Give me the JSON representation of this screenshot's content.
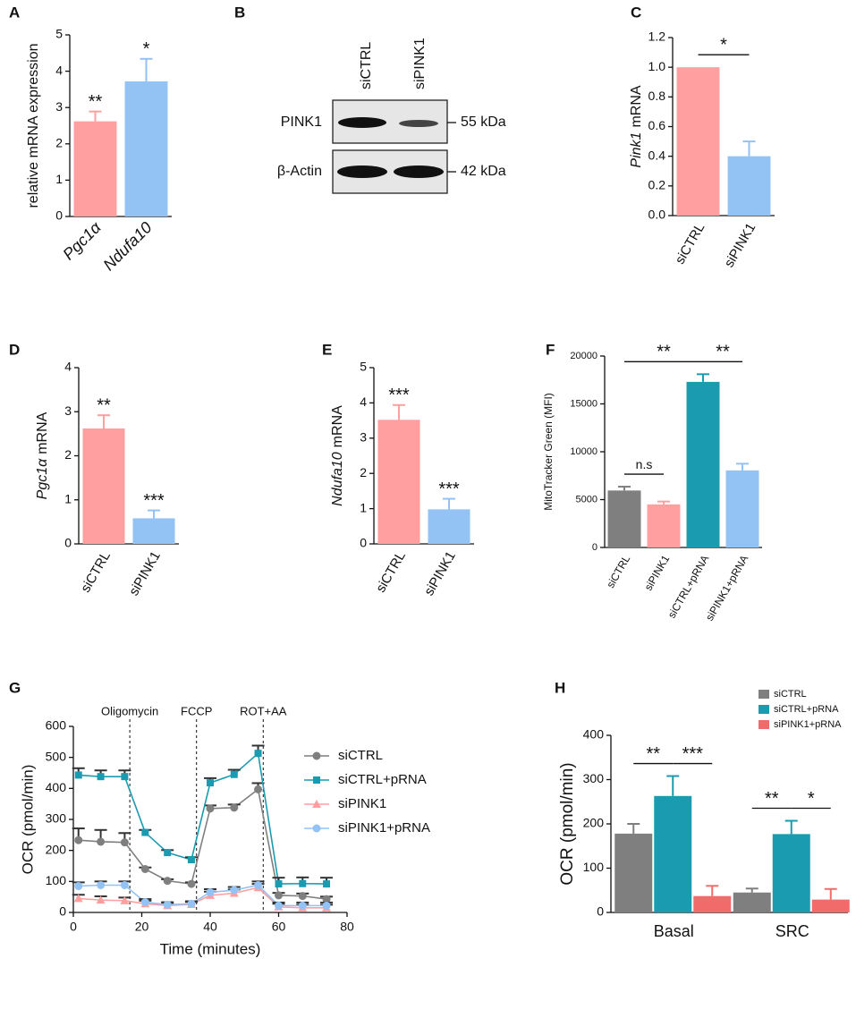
{
  "chart_data": [
    {
      "type": "bar",
      "letter": "A",
      "ylabel": "relative mRNA expression",
      "categories": [
        "Pgc1α",
        "Ndufa10"
      ],
      "italic_categories": true,
      "values": [
        2.62,
        3.72
      ],
      "errors": [
        0.27,
        0.62
      ],
      "colors": [
        "#ff9f9f",
        "#93c2f5"
      ],
      "annotations": [
        "**",
        "*"
      ],
      "ylim": [
        0,
        5
      ],
      "yticks": [
        0,
        1,
        2,
        3,
        4,
        5
      ]
    },
    {
      "type": "bar",
      "letter": "C",
      "ylabel": {
        "gene": "Pink1",
        "text": "mRNA"
      },
      "categories": [
        "siCTRL",
        "siPINK1"
      ],
      "values": [
        1.0,
        0.4
      ],
      "errors": [
        null,
        0.1
      ],
      "colors": [
        "#ff9f9f",
        "#93c2f5"
      ],
      "brackets": [
        {
          "from": 0,
          "to": 1,
          "label": "*"
        }
      ],
      "ylim": [
        0,
        1.2
      ],
      "yticks": [
        {
          "value": 0,
          "label": "0.0"
        },
        0.2,
        0.4,
        0.6,
        0.8,
        {
          "value": 1,
          "label": "1.0"
        },
        1.2
      ]
    },
    {
      "type": "bar",
      "letter": "D",
      "ylabel": {
        "gene": "Pgc1α",
        "text": "mRNA"
      },
      "categories": [
        "siCTRL",
        "siPINK1"
      ],
      "values": [
        2.62,
        0.58
      ],
      "errors": [
        0.3,
        0.18
      ],
      "colors": [
        "#ff9f9f",
        "#93c2f5"
      ],
      "annotations": [
        "**",
        "***"
      ],
      "ylim": [
        0,
        4
      ],
      "yticks": [
        0,
        1,
        2,
        3,
        4
      ]
    },
    {
      "type": "bar",
      "letter": "E",
      "ylabel": {
        "gene": "Ndufa10",
        "text": "mRNA"
      },
      "categories": [
        "siCTRL",
        "siPINK1"
      ],
      "values": [
        3.52,
        0.98
      ],
      "errors": [
        0.42,
        0.3
      ],
      "colors": [
        "#ff9f9f",
        "#93c2f5"
      ],
      "annotations": [
        "***",
        "***"
      ],
      "ylim": [
        0,
        5
      ],
      "yticks": [
        0,
        1,
        2,
        3,
        4,
        5
      ]
    },
    {
      "type": "bar",
      "letter": "F",
      "ylabel": "MitoTracker Green (MFI)",
      "categories": [
        "siCTRL",
        "siPINK1",
        "siCTRL+pRNA",
        "siPINK1+pRNA"
      ],
      "values": [
        5950,
        4500,
        17300,
        8050
      ],
      "errors": [
        400,
        300,
        800,
        700
      ],
      "colors": [
        "#7f7f7f",
        "#ff9f9f",
        "#1a9bb0",
        "#93c2f5"
      ],
      "brackets": [
        {
          "from": 0,
          "to": 1,
          "label": "n.s"
        },
        {
          "from": 0,
          "to": 2,
          "label": "**"
        },
        {
          "from": 2,
          "to": 3,
          "label": "**"
        }
      ],
      "ylim": [
        0,
        20000
      ],
      "yticks": [
        0,
        5000,
        10000,
        15000,
        20000
      ]
    },
    {
      "type": "line",
      "letter": "G",
      "xlabel": "Time (minutes)",
      "ylabel": "OCR (pmol/min)",
      "x": [
        1.5,
        8,
        15,
        21,
        27.5,
        34.5,
        40,
        47,
        54,
        60,
        67,
        74
      ],
      "series": [
        {
          "name": "siCTRL",
          "color": "#7f7f7f",
          "marker": "circle",
          "values": [
            233,
            228,
            226,
            140,
            102,
            92,
            335,
            338,
            397,
            55,
            53,
            43
          ],
          "errors": [
            38,
            38,
            30,
            5,
            5,
            5,
            10,
            10,
            20,
            8,
            8,
            8
          ]
        },
        {
          "name": "siCTRL+pRNA",
          "color": "#1a9bb0",
          "marker": "square",
          "values": [
            443,
            438,
            438,
            258,
            193,
            170,
            418,
            445,
            513,
            92,
            93,
            92
          ],
          "errors": [
            22,
            20,
            20,
            8,
            8,
            8,
            15,
            15,
            25,
            20,
            20,
            20
          ]
        },
        {
          "name": "siPINK1",
          "color": "#ff9f9f",
          "marker": "triangle",
          "values": [
            45,
            40,
            38,
            28,
            22,
            26,
            55,
            62,
            80,
            18,
            15,
            15
          ],
          "errors": [
            12,
            12,
            10,
            10,
            8,
            8,
            12,
            12,
            12,
            10,
            10,
            10
          ]
        },
        {
          "name": "siPINK1+pRNA",
          "color": "#93c2f5",
          "marker": "circle",
          "values": [
            85,
            88,
            88,
            33,
            25,
            28,
            65,
            72,
            88,
            22,
            22,
            22
          ],
          "errors": [
            12,
            12,
            12,
            10,
            8,
            8,
            10,
            10,
            12,
            10,
            10,
            10
          ]
        }
      ],
      "events": [
        {
          "label": "Oligomycin",
          "x": 16.5
        },
        {
          "label": "FCCP",
          "x": 36
        },
        {
          "label": "ROT+AA",
          "x": 55.5
        }
      ],
      "legend": "right",
      "xlim": [
        0,
        80
      ],
      "xticks": [
        0,
        20,
        40,
        60,
        80
      ],
      "ylim": [
        0,
        600
      ],
      "yticks": [
        0,
        100,
        200,
        300,
        400,
        500,
        600
      ]
    },
    {
      "type": "grouped_bar",
      "letter": "H",
      "ylabel": "OCR (pmol/min)",
      "categories": [
        "Basal",
        "SRC"
      ],
      "series": [
        {
          "name": "siCTRL",
          "color": "#7f7f7f",
          "values": [
            178,
            45
          ],
          "errors": [
            22,
            9
          ]
        },
        {
          "name": "siCTRL+pRNA",
          "color": "#1a9bb0",
          "values": [
            263,
            177
          ],
          "errors": [
            45,
            30
          ]
        },
        {
          "name": "siPINK1+pRNA",
          "color": "#f26b6b",
          "values": [
            37,
            29
          ],
          "errors": [
            23,
            24
          ]
        }
      ],
      "brackets": [
        {
          "category": 0,
          "from": 0,
          "to": 1,
          "label": "**"
        },
        {
          "category": 0,
          "from": 1,
          "to": 2,
          "label": "***"
        },
        {
          "category": 1,
          "from": 0,
          "to": 1,
          "label": "**"
        },
        {
          "category": 1,
          "from": 1,
          "to": 2,
          "label": "*"
        }
      ],
      "legend": "upper right",
      "ylim": [
        0,
        400
      ],
      "yticks": [
        0,
        100,
        200,
        300,
        400
      ]
    }
  ],
  "blot": {
    "letter": "B",
    "lanes": [
      "siCTRL",
      "siPINK1"
    ],
    "rows": [
      {
        "protein": "PINK1",
        "size": "55 kDa"
      },
      {
        "protein": "β-Actin",
        "size": "42 kDa"
      }
    ]
  }
}
